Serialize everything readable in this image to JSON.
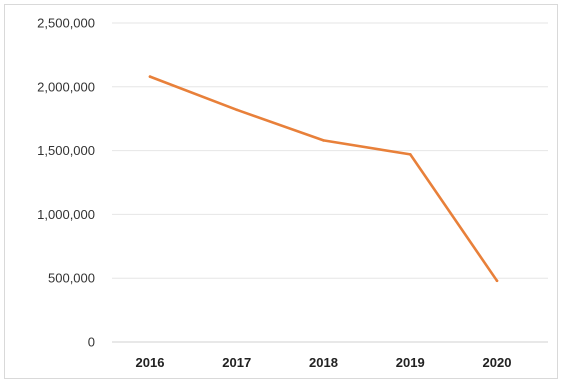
{
  "chart_data": {
    "type": "line",
    "title": "",
    "xlabel": "",
    "ylabel": "",
    "categories": [
      "2016",
      "2017",
      "2018",
      "2019",
      "2020"
    ],
    "series": [
      {
        "color": "#E8803A",
        "values": [
          2080000,
          1820000,
          1580000,
          1470000,
          480000
        ]
      }
    ],
    "ylim": [
      0,
      2500000
    ],
    "yticks": [
      0,
      500000,
      1000000,
      1500000,
      2000000,
      2500000
    ],
    "ytick_labels": [
      "0",
      "500,000",
      "1,000,000",
      "1,500,000",
      "2,000,000",
      "2,500,000"
    ],
    "grid": true,
    "legend": "none"
  }
}
